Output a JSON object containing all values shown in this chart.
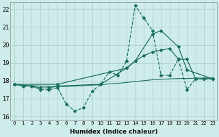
{
  "xlabel": "Humidex (Indice chaleur)",
  "background_color": "#ceecea",
  "grid_color": "#b0d0cc",
  "line_color": "#1a6e62",
  "xlim": [
    -0.5,
    23.5
  ],
  "ylim": [
    15.8,
    22.4
  ],
  "yticks": [
    16,
    17,
    18,
    19,
    20,
    21,
    22
  ],
  "xticks": [
    0,
    1,
    2,
    3,
    4,
    5,
    6,
    7,
    8,
    9,
    10,
    11,
    12,
    13,
    14,
    15,
    16,
    17,
    18,
    19,
    20,
    21,
    22,
    23
  ],
  "line_dashed_x": [
    0,
    1,
    2,
    3,
    4,
    5,
    6,
    7,
    8,
    9,
    10,
    11,
    12,
    13,
    14,
    15,
    16,
    17,
    18,
    19,
    20,
    21,
    22,
    23
  ],
  "line_dashed_y": [
    17.8,
    17.7,
    17.7,
    17.5,
    17.5,
    17.6,
    16.7,
    16.3,
    16.5,
    17.4,
    17.8,
    18.5,
    18.3,
    19.1,
    22.2,
    21.5,
    20.8,
    18.3,
    18.3,
    19.2,
    17.5,
    18.1,
    18.1,
    18.1
  ],
  "line_solid1_x": [
    0,
    1,
    2,
    3,
    4,
    5,
    10,
    13,
    14,
    15,
    16,
    17,
    18,
    19,
    20,
    21,
    22,
    23
  ],
  "line_solid1_y": [
    17.8,
    17.7,
    17.7,
    17.6,
    17.6,
    17.7,
    17.8,
    18.7,
    19.1,
    19.4,
    19.6,
    19.7,
    19.8,
    19.2,
    19.2,
    18.1,
    18.1,
    18.1
  ],
  "line_flat_x": [
    0,
    1,
    2,
    3,
    4,
    5,
    6,
    7,
    8,
    9,
    10,
    11,
    12,
    13,
    14,
    15,
    16,
    17,
    18,
    19,
    20,
    21,
    22,
    23
  ],
  "line_flat_y": [
    17.8,
    17.75,
    17.72,
    17.7,
    17.68,
    17.68,
    17.68,
    17.7,
    17.72,
    17.75,
    17.78,
    17.82,
    17.85,
    17.9,
    17.95,
    18.0,
    18.05,
    18.08,
    18.1,
    18.12,
    18.12,
    18.14,
    18.15,
    18.15
  ],
  "line_solid2_x": [
    0,
    5,
    13,
    14,
    16,
    17,
    19,
    20,
    23
  ],
  "line_solid2_y": [
    17.8,
    17.8,
    18.7,
    19.1,
    20.6,
    20.8,
    19.9,
    18.6,
    18.1
  ]
}
